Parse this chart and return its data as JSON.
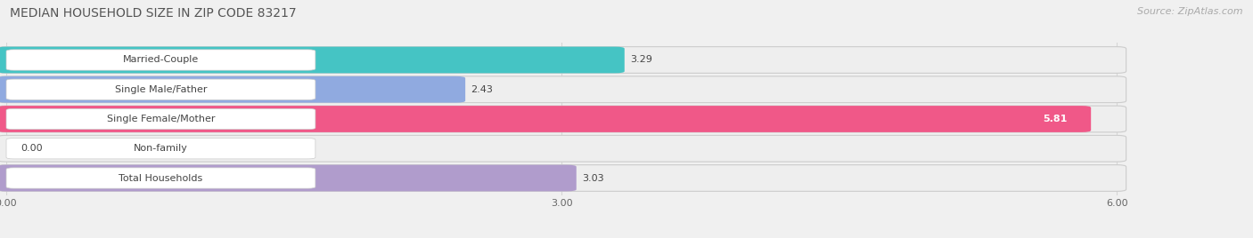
{
  "title": "MEDIAN HOUSEHOLD SIZE IN ZIP CODE 83217",
  "source": "Source: ZipAtlas.com",
  "categories": [
    "Married-Couple",
    "Single Male/Father",
    "Single Female/Mother",
    "Non-family",
    "Total Households"
  ],
  "values": [
    3.29,
    2.43,
    5.81,
    0.0,
    3.03
  ],
  "bar_colors": [
    "#45c4c4",
    "#90aae0",
    "#f05888",
    "#f5c898",
    "#b09ccc"
  ],
  "xlim": [
    0,
    6.6
  ],
  "x_max_data": 6.0,
  "xticks": [
    0.0,
    3.0,
    6.0
  ],
  "xtick_labels": [
    "0.00",
    "3.00",
    "6.00"
  ],
  "title_fontsize": 10,
  "label_fontsize": 8,
  "value_fontsize": 8,
  "source_fontsize": 8,
  "background_color": "#f0f0f0",
  "bar_bg_color": "#e8e8e8",
  "white_color": "#ffffff",
  "grid_color": "#d0d0d0"
}
